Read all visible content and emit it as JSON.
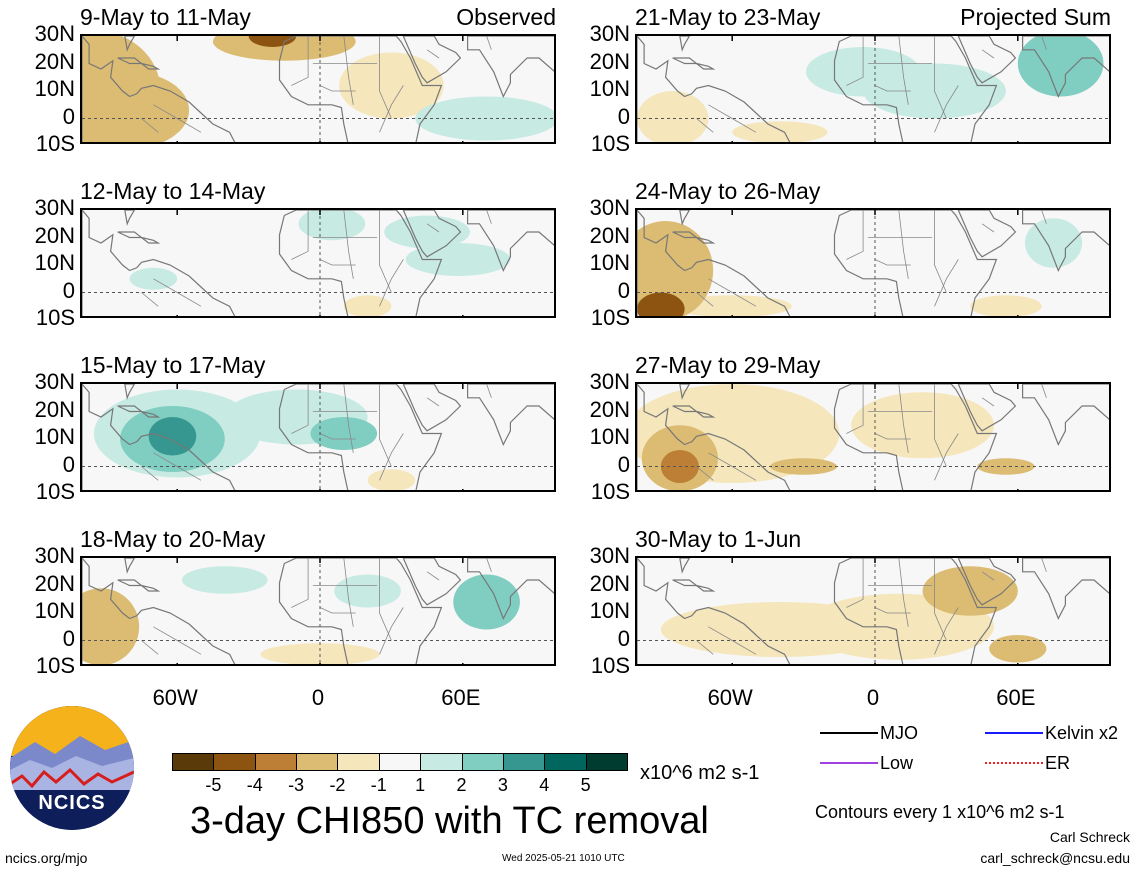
{
  "left_tag": "Observed",
  "right_tag": "Projected Sum",
  "lat_labels": [
    "30N",
    "20N",
    "10N",
    "0",
    "10S"
  ],
  "lon_labels": [
    "60W",
    "0",
    "60E"
  ],
  "panels": [
    {
      "title": "9-May to 11-May",
      "col": 0,
      "row": 0,
      "anomalies": [
        {
          "lon": -95,
          "lat": 10,
          "rx": 28,
          "ry": 22,
          "level": -2
        },
        {
          "lon": -80,
          "lat": 3,
          "rx": 25,
          "ry": 14,
          "level": -2
        },
        {
          "lon": -15,
          "lat": 28,
          "rx": 30,
          "ry": 7,
          "level": -2
        },
        {
          "lon": -20,
          "lat": 30,
          "rx": 10,
          "ry": 4,
          "level": -4
        },
        {
          "lon": 30,
          "lat": 12,
          "rx": 22,
          "ry": 12,
          "level": -1
        },
        {
          "lon": 70,
          "lat": 0,
          "rx": 30,
          "ry": 8,
          "level": 1
        }
      ]
    },
    {
      "title": "12-May to 14-May",
      "col": 0,
      "row": 1,
      "anomalies": [
        {
          "lon": 5,
          "lat": 25,
          "rx": 14,
          "ry": 6,
          "level": 1
        },
        {
          "lon": 45,
          "lat": 22,
          "rx": 18,
          "ry": 6,
          "level": 1
        },
        {
          "lon": 58,
          "lat": 12,
          "rx": 22,
          "ry": 6,
          "level": 1
        },
        {
          "lon": -70,
          "lat": 5,
          "rx": 10,
          "ry": 4,
          "level": 1
        },
        {
          "lon": 20,
          "lat": -5,
          "rx": 10,
          "ry": 4,
          "level": -1
        }
      ]
    },
    {
      "title": "15-May to 17-May",
      "col": 0,
      "row": 2,
      "anomalies": [
        {
          "lon": -60,
          "lat": 12,
          "rx": 35,
          "ry": 16,
          "level": 1
        },
        {
          "lon": -62,
          "lat": 10,
          "rx": 22,
          "ry": 12,
          "level": 2
        },
        {
          "lon": -62,
          "lat": 11,
          "rx": 10,
          "ry": 7,
          "level": 3
        },
        {
          "lon": -10,
          "lat": 18,
          "rx": 30,
          "ry": 10,
          "level": 1
        },
        {
          "lon": 10,
          "lat": 12,
          "rx": 14,
          "ry": 6,
          "level": 2
        },
        {
          "lon": 30,
          "lat": -5,
          "rx": 10,
          "ry": 4,
          "level": -1
        }
      ]
    },
    {
      "title": "18-May to 20-May",
      "col": 0,
      "row": 3,
      "anomalies": [
        {
          "lon": -92,
          "lat": 5,
          "rx": 16,
          "ry": 14,
          "level": -2
        },
        {
          "lon": 20,
          "lat": 18,
          "rx": 14,
          "ry": 6,
          "level": 1
        },
        {
          "lon": 70,
          "lat": 14,
          "rx": 14,
          "ry": 10,
          "level": 2
        },
        {
          "lon": -40,
          "lat": 22,
          "rx": 18,
          "ry": 5,
          "level": 1
        },
        {
          "lon": 0,
          "lat": -5,
          "rx": 25,
          "ry": 4,
          "level": -1
        }
      ]
    },
    {
      "title": "21-May to 23-May",
      "col": 1,
      "row": 0,
      "anomalies": [
        {
          "lon": -5,
          "lat": 17,
          "rx": 24,
          "ry": 9,
          "level": 1
        },
        {
          "lon": 25,
          "lat": 10,
          "rx": 30,
          "ry": 10,
          "level": 1
        },
        {
          "lon": 78,
          "lat": 20,
          "rx": 18,
          "ry": 12,
          "level": 2
        },
        {
          "lon": -85,
          "lat": 0,
          "rx": 15,
          "ry": 10,
          "level": -1
        },
        {
          "lon": -40,
          "lat": -5,
          "rx": 20,
          "ry": 4,
          "level": -1
        }
      ]
    },
    {
      "title": "24-May to 26-May",
      "col": 1,
      "row": 1,
      "anomalies": [
        {
          "lon": -88,
          "lat": 8,
          "rx": 20,
          "ry": 18,
          "level": -2
        },
        {
          "lon": -90,
          "lat": -6,
          "rx": 10,
          "ry": 6,
          "level": -4
        },
        {
          "lon": -60,
          "lat": -5,
          "rx": 25,
          "ry": 4,
          "level": -1
        },
        {
          "lon": 75,
          "lat": 18,
          "rx": 12,
          "ry": 9,
          "level": 1
        },
        {
          "lon": 55,
          "lat": -5,
          "rx": 15,
          "ry": 4,
          "level": -1
        }
      ]
    },
    {
      "title": "27-May to 29-May",
      "col": 1,
      "row": 2,
      "anomalies": [
        {
          "lon": -60,
          "lat": 12,
          "rx": 45,
          "ry": 18,
          "level": -1
        },
        {
          "lon": -82,
          "lat": 3,
          "rx": 16,
          "ry": 12,
          "level": -2
        },
        {
          "lon": -82,
          "lat": 0,
          "rx": 8,
          "ry": 6,
          "level": -3
        },
        {
          "lon": -30,
          "lat": 0,
          "rx": 14,
          "ry": 3,
          "level": -2
        },
        {
          "lon": 20,
          "lat": 15,
          "rx": 30,
          "ry": 12,
          "level": -1
        },
        {
          "lon": 55,
          "lat": 0,
          "rx": 12,
          "ry": 3,
          "level": -2
        }
      ]
    },
    {
      "title": "30-May to 1-Jun",
      "col": 1,
      "row": 3,
      "anomalies": [
        {
          "lon": -40,
          "lat": 4,
          "rx": 50,
          "ry": 10,
          "level": -1
        },
        {
          "lon": 40,
          "lat": 18,
          "rx": 20,
          "ry": 9,
          "level": -2
        },
        {
          "lon": 10,
          "lat": 5,
          "rx": 40,
          "ry": 12,
          "level": -1
        },
        {
          "lon": 60,
          "lat": -3,
          "rx": 12,
          "ry": 5,
          "level": -2
        }
      ]
    }
  ],
  "legend": {
    "items": [
      {
        "label": "MJO",
        "color": "#000000",
        "style": "solid"
      },
      {
        "label": "Kelvin x2",
        "color": "#1a1aff",
        "style": "solid"
      },
      {
        "label": "Low",
        "color": "#a040e0",
        "style": "solid"
      },
      {
        "label": "ER",
        "color": "#ee2020",
        "style": "dotted"
      }
    ],
    "contours_note": "Contours every 1 x10^6 m2 s-1"
  },
  "colorbar": {
    "labels": [
      "-5",
      "-4",
      "-3",
      "-2",
      "-1",
      "1",
      "2",
      "3",
      "4",
      "5"
    ],
    "colors": [
      "#5a3a08",
      "#8c5410",
      "#bd7f35",
      "#dcbc73",
      "#f5e6bc",
      "#f7f7f7",
      "#c7eae3",
      "#80cdc1",
      "#35978f",
      "#01665e",
      "#003c30"
    ],
    "units": "x10^6 m2 s-1"
  },
  "title": "3-day CHI850 with TC removal",
  "footer": {
    "left": "ncics.org/mjo",
    "center": "Wed 2025-05-21 1010 UTC",
    "author": "Carl Schreck",
    "email": "carl_schreck@ncsu.edu"
  },
  "logo_text": "NCICS"
}
